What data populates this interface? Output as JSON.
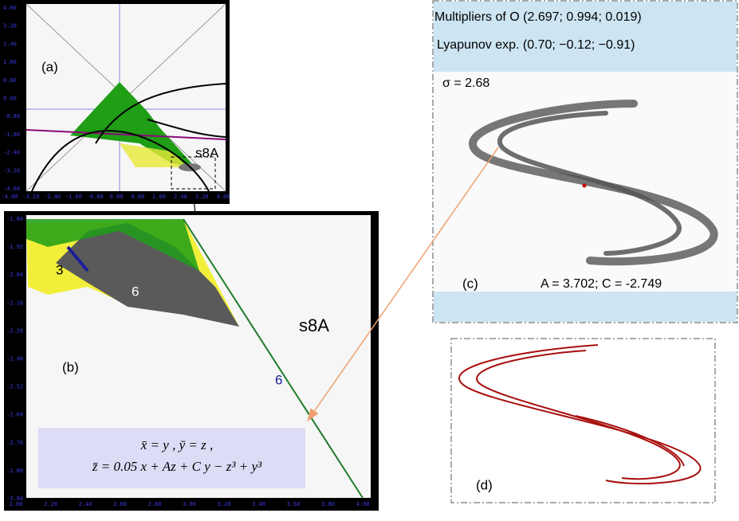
{
  "panel_a": {
    "label": "(a)",
    "region": "s8A",
    "xticks": [
      "-4.00",
      "-3.20",
      "-2.40",
      "-1.60",
      "-0.80",
      "0.00",
      "0.80",
      "1.60",
      "2.40",
      "3.20",
      "4.00"
    ],
    "yticks": [
      "4.00",
      "3.20",
      "2.40",
      "1.60",
      "0.80",
      "0.00",
      "-0.80",
      "-1.60",
      "-2.40",
      "-3.20",
      "-4.00"
    ]
  },
  "panel_b": {
    "label": "(b)",
    "region": "s8A",
    "period_labels": [
      "3",
      "6",
      "6"
    ],
    "xticks": [
      "2.00",
      "2.20",
      "2.40",
      "2.60",
      "2.80",
      "3.00",
      "3.20",
      "3.40",
      "3.60",
      "3.80",
      "4.00"
    ],
    "yticks": [
      "-1.80",
      "-1.92",
      "-2.04",
      "-2.16",
      "-2.28",
      "-2.40",
      "-2.52",
      "-2.64",
      "-2.76",
      "-2.88",
      "-3.00"
    ],
    "formula": [
      "x̄ = y ,  ȳ = z ,",
      "z̄ = 0.05 x + Az + C y − z³ + y³"
    ]
  },
  "panel_c": {
    "label": "(c)",
    "multipliers": "Multipliers of O (2.697; 0.994; 0.019)",
    "lyapunov": "Lyapunov exp. (0.70; −0.12; −0.91)",
    "sigma": "σ = 2.68",
    "params": "A = 3.702; C = -2.749"
  },
  "panel_d": {
    "label": "(d)"
  }
}
